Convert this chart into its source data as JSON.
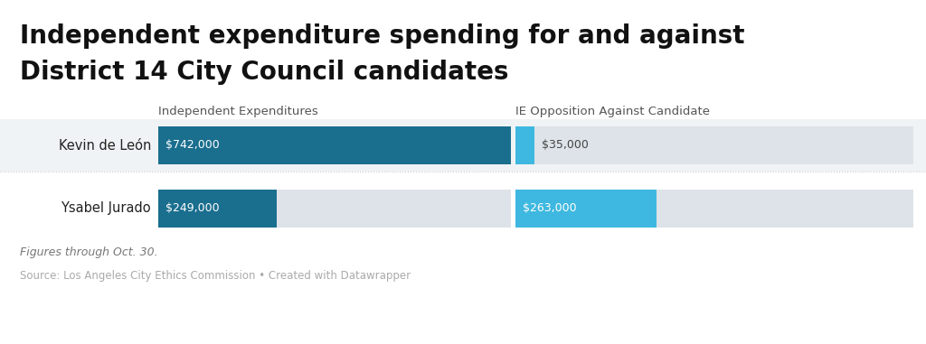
{
  "title_line1": "Independent expenditure spending for and against",
  "title_line2": "District 14 City Council candidates",
  "candidates": [
    "Kevin de León",
    "Ysabel Jurado"
  ],
  "ie_for_values": [
    742000,
    249000
  ],
  "ie_against_values": [
    35000,
    263000
  ],
  "ie_for_labels": [
    "$742,000",
    "$249,000"
  ],
  "ie_against_labels": [
    "$35,000",
    "$263,000"
  ],
  "ie_for_color": "#1a6e8e",
  "ie_against_color": "#3eb8e0",
  "bg_bar_color": "#dde3e8",
  "col1_header": "Independent Expenditures",
  "col2_header": "IE Opposition Against Candidate",
  "footnote": "Figures through Oct. 30.",
  "source": "Source: Los Angeles City Ethics Commission • Created with Datawrapper",
  "max_val": 742000,
  "background_color": "#ffffff",
  "row_bg_even": "#f0f3f5",
  "row_bg_odd": "#ffffff",
  "separator_color": "#cccccc",
  "title_color": "#111111",
  "candidate_color": "#222222",
  "header_color": "#555555",
  "footnote_color": "#777777",
  "source_color": "#aaaaaa",
  "label_color_white": "#ffffff",
  "label_color_dark": "#444444"
}
